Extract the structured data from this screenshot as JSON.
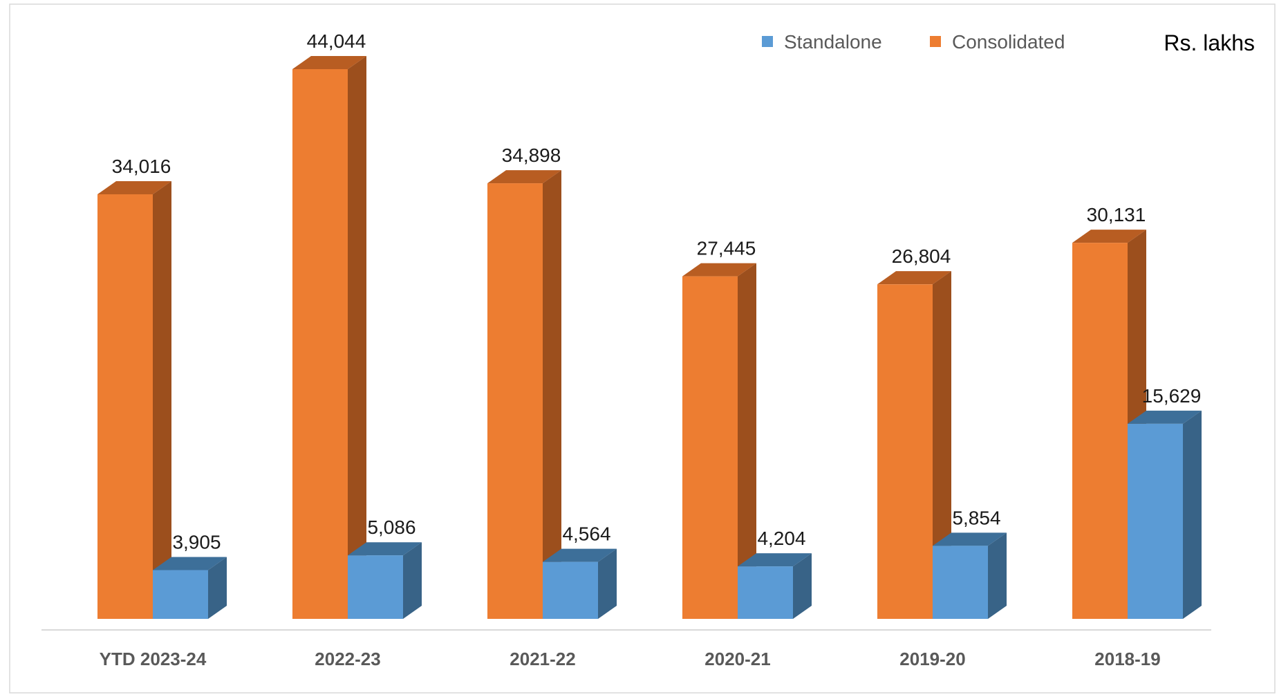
{
  "chart_data": {
    "type": "bar",
    "unit_label": "Rs. lakhs",
    "categories": [
      "YTD  2023-24",
      "2022-23",
      "2021-22",
      "2020-21",
      "2019-20",
      "2018-19"
    ],
    "series": [
      {
        "name": "Consolidated",
        "values": [
          34016,
          44044,
          34898,
          27445,
          26804,
          30131
        ],
        "labels": [
          "34,016",
          "44,044",
          "34,898",
          "27,445",
          "26,804",
          "30,131"
        ]
      },
      {
        "name": "Standalone",
        "values": [
          3905,
          5086,
          4564,
          4204,
          5854,
          15629
        ],
        "labels": [
          "3,905",
          "5,086",
          "4,564",
          "4,204",
          "5,854",
          "15,629"
        ]
      }
    ],
    "legend": {
      "position": "top-right",
      "order": [
        "Standalone",
        "Consolidated"
      ]
    },
    "ylim": [
      0,
      44044
    ],
    "grid": false,
    "three_d": true
  },
  "colors": {
    "Consolidated": {
      "front": "#ed7d31",
      "top": "#b85d22",
      "side": "#9c4f1d"
    },
    "Standalone": {
      "front": "#5b9bd5",
      "top": "#3d6f99",
      "side": "#386387"
    },
    "axis": "#d9d9d9",
    "frame": "#d9d9d9"
  }
}
